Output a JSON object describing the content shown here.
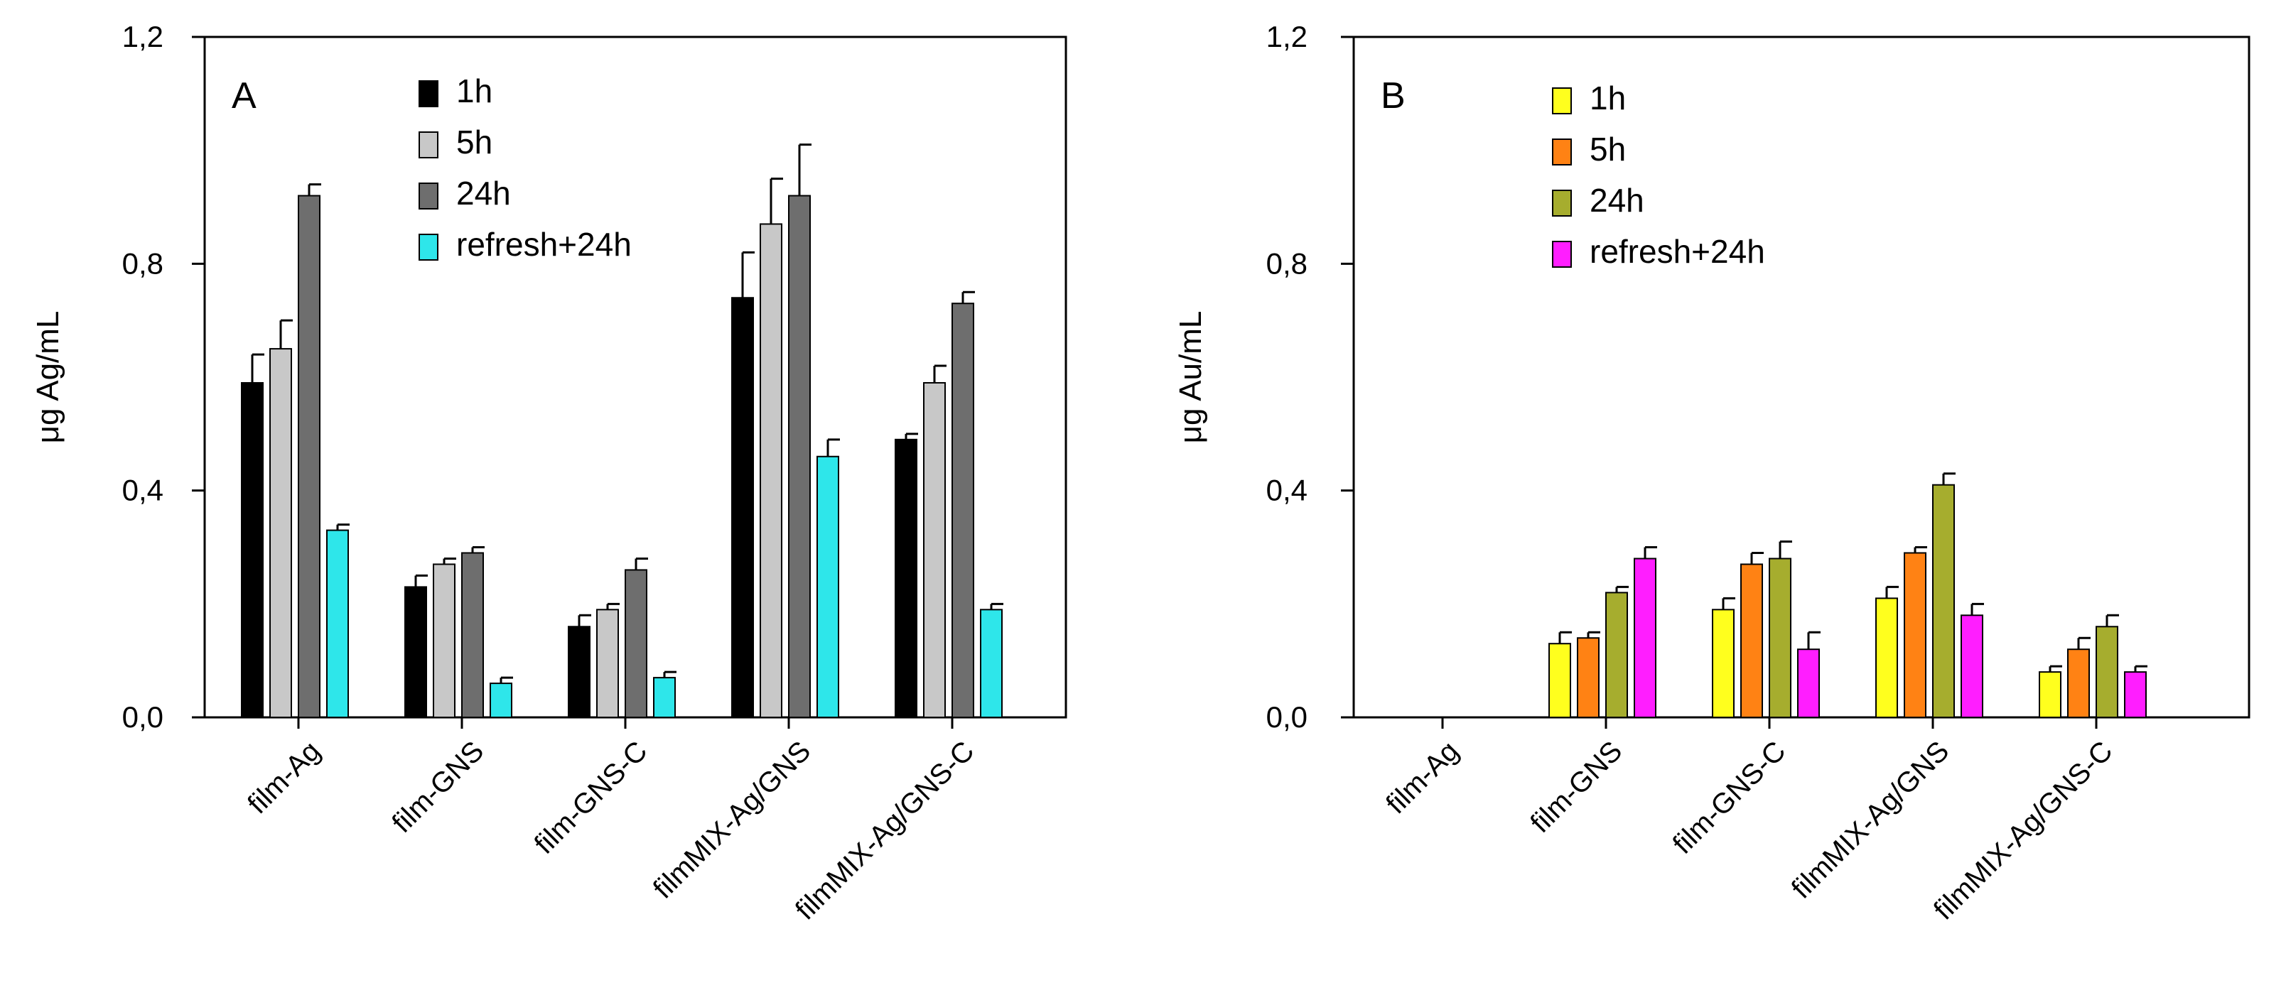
{
  "chart_data": [
    {
      "type": "bar",
      "panel_label": "A",
      "ylabel": "μg Ag/mL",
      "ylim": [
        0,
        1.2
      ],
      "yticks": [
        "0,0",
        "0,4",
        "0,8",
        "1,2"
      ],
      "categories": [
        "film-Ag",
        "film-GNS",
        "film-GNS-C",
        "filmMIX-Ag/GNS",
        "filmMIX-Ag/GNS-C"
      ],
      "legend_position": "top-center",
      "series": [
        {
          "name": "1h",
          "color": "#000000",
          "values": [
            0.59,
            0.23,
            0.16,
            0.74,
            0.49
          ],
          "errors": [
            0.05,
            0.02,
            0.02,
            0.08,
            0.01
          ]
        },
        {
          "name": "5h",
          "color": "#c8c8c8",
          "values": [
            0.65,
            0.27,
            0.19,
            0.87,
            0.59
          ],
          "errors": [
            0.05,
            0.01,
            0.01,
            0.08,
            0.03
          ]
        },
        {
          "name": "24h",
          "color": "#6e6e6e",
          "values": [
            0.92,
            0.29,
            0.26,
            0.92,
            0.73
          ],
          "errors": [
            0.02,
            0.01,
            0.02,
            0.09,
            0.02
          ]
        },
        {
          "name": "refresh+24h",
          "color": "#2ee6ea",
          "values": [
            0.33,
            0.06,
            0.07,
            0.46,
            0.19
          ],
          "errors": [
            0.01,
            0.01,
            0.01,
            0.03,
            0.01
          ]
        }
      ]
    },
    {
      "type": "bar",
      "panel_label": "B",
      "ylabel": "μg Au/mL",
      "ylim": [
        0,
        1.2
      ],
      "yticks": [
        "0,0",
        "0,4",
        "0,8",
        "1,2"
      ],
      "categories": [
        "film-Ag",
        "film-GNS",
        "film-GNS-C",
        "filmMIX-Ag/GNS",
        "filmMIX-Ag/GNS-C"
      ],
      "legend_position": "top-center",
      "series": [
        {
          "name": "1h",
          "color": "#ffff1e",
          "values": [
            null,
            0.13,
            0.19,
            0.21,
            0.08
          ],
          "errors": [
            null,
            0.02,
            0.02,
            0.02,
            0.01
          ]
        },
        {
          "name": "5h",
          "color": "#ff8214",
          "values": [
            null,
            0.14,
            0.27,
            0.29,
            0.12
          ],
          "errors": [
            null,
            0.01,
            0.02,
            0.01,
            0.02
          ]
        },
        {
          "name": "24h",
          "color": "#a6ad2e",
          "values": [
            null,
            0.22,
            0.28,
            0.41,
            0.16
          ],
          "errors": [
            null,
            0.01,
            0.03,
            0.02,
            0.02
          ]
        },
        {
          "name": "refresh+24h",
          "color": "#ff1eff",
          "values": [
            null,
            0.28,
            0.12,
            0.18,
            0.08
          ],
          "errors": [
            null,
            0.02,
            0.03,
            0.02,
            0.01
          ]
        }
      ]
    }
  ]
}
